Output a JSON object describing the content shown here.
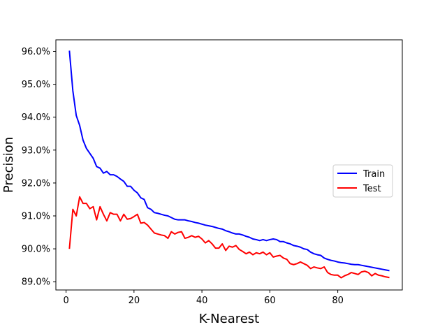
{
  "chart_data": {
    "type": "line",
    "xlabel": "K-Nearest",
    "ylabel": "Precision",
    "xlim": [
      -3,
      99
    ],
    "ylim": [
      88.75,
      96.35
    ],
    "xticks": [
      0,
      20,
      40,
      60,
      80
    ],
    "xtick_labels": [
      "0",
      "20",
      "40",
      "60",
      "80"
    ],
    "yticks": [
      89,
      90,
      91,
      92,
      93,
      94,
      95,
      96
    ],
    "ytick_labels": [
      "89.0%",
      "90.0%",
      "91.0%",
      "92.0%",
      "93.0%",
      "94.0%",
      "95.0%",
      "96.0%"
    ],
    "grid": false,
    "legend_position": "center-right",
    "x": [
      1,
      2,
      3,
      4,
      5,
      6,
      7,
      8,
      9,
      10,
      11,
      12,
      13,
      14,
      15,
      16,
      17,
      18,
      19,
      20,
      21,
      22,
      23,
      24,
      25,
      26,
      27,
      28,
      29,
      30,
      31,
      32,
      33,
      34,
      35,
      36,
      37,
      38,
      39,
      40,
      41,
      42,
      43,
      44,
      45,
      46,
      47,
      48,
      49,
      50,
      51,
      52,
      53,
      54,
      55,
      56,
      57,
      58,
      59,
      60,
      61,
      62,
      63,
      64,
      65,
      66,
      67,
      68,
      69,
      70,
      71,
      72,
      73,
      74,
      75,
      76,
      77,
      78,
      79,
      80,
      81,
      82,
      83,
      84,
      85,
      86,
      87,
      88,
      89,
      90,
      91,
      92,
      93,
      94,
      95
    ],
    "series": [
      {
        "name": "Train",
        "color": "#0000ff",
        "values": [
          96.0,
          94.8,
          94.05,
          93.75,
          93.3,
          93.05,
          92.9,
          92.75,
          92.5,
          92.45,
          92.3,
          92.35,
          92.25,
          92.25,
          92.2,
          92.12,
          92.05,
          91.9,
          91.9,
          91.78,
          91.7,
          91.55,
          91.5,
          91.25,
          91.2,
          91.1,
          91.08,
          91.05,
          91.02,
          91.0,
          90.95,
          90.9,
          90.88,
          90.88,
          90.88,
          90.85,
          90.83,
          90.8,
          90.78,
          90.75,
          90.72,
          90.7,
          90.68,
          90.65,
          90.62,
          90.6,
          90.55,
          90.52,
          90.48,
          90.45,
          90.45,
          90.42,
          90.38,
          90.35,
          90.3,
          90.28,
          90.25,
          90.28,
          90.25,
          90.28,
          90.3,
          90.28,
          90.22,
          90.22,
          90.18,
          90.15,
          90.1,
          90.08,
          90.05,
          90.0,
          89.98,
          89.9,
          89.85,
          89.82,
          89.8,
          89.72,
          89.68,
          89.65,
          89.63,
          89.6,
          89.58,
          89.57,
          89.55,
          89.53,
          89.52,
          89.52,
          89.5,
          89.48,
          89.46,
          89.44,
          89.42,
          89.4,
          89.38,
          89.36,
          89.34
        ]
      },
      {
        "name": "Test",
        "color": "#ff0000",
        "values": [
          90.02,
          91.2,
          91.0,
          91.58,
          91.38,
          91.38,
          91.22,
          91.28,
          90.88,
          91.28,
          91.05,
          90.85,
          91.1,
          91.05,
          91.05,
          90.85,
          91.05,
          90.9,
          90.92,
          90.98,
          91.05,
          90.78,
          90.8,
          90.72,
          90.6,
          90.48,
          90.45,
          90.42,
          90.4,
          90.32,
          90.52,
          90.45,
          90.5,
          90.52,
          90.32,
          90.35,
          90.4,
          90.35,
          90.38,
          90.3,
          90.18,
          90.25,
          90.15,
          90.02,
          90.02,
          90.15,
          89.95,
          90.08,
          90.05,
          90.1,
          89.98,
          89.92,
          89.85,
          89.9,
          89.82,
          89.88,
          89.85,
          89.9,
          89.82,
          89.88,
          89.75,
          89.78,
          89.8,
          89.72,
          89.68,
          89.55,
          89.52,
          89.55,
          89.6,
          89.55,
          89.5,
          89.4,
          89.45,
          89.42,
          89.4,
          89.45,
          89.28,
          89.22,
          89.2,
          89.2,
          89.12,
          89.18,
          89.22,
          89.28,
          89.25,
          89.22,
          89.3,
          89.32,
          89.28,
          89.18,
          89.25,
          89.2,
          89.18,
          89.15,
          89.13
        ]
      }
    ]
  }
}
